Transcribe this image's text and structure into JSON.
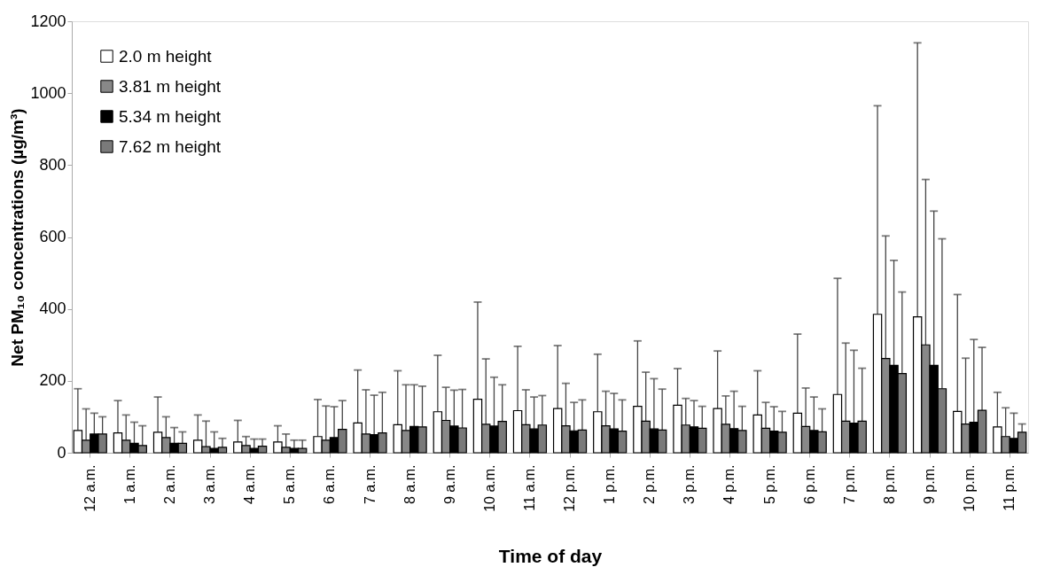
{
  "chart_data": {
    "type": "bar",
    "xlabel": "Time of day",
    "ylabel": "Net PM₁₀ concentrations (µg/m³)",
    "categories": [
      "12 a.m.",
      "1 a.m.",
      "2 a.m.",
      "3 a.m.",
      "4 a.m.",
      "5 a.m.",
      "6 a.m.",
      "7 a.m.",
      "8 a.m.",
      "9 a.m.",
      "10 a.m.",
      "11 a.m.",
      "12 p.m.",
      "1 p.m.",
      "2 p.m.",
      "3 p.m.",
      "4 p.m.",
      "5 p.m.",
      "6 p.m.",
      "7 p.m.",
      "8 p.m.",
      "9 p.m.",
      "10 p.m.",
      "11 p.m."
    ],
    "series": [
      {
        "name": "2.0 m height",
        "color": "#ffffff",
        "values": [
          62,
          55,
          57,
          35,
          30,
          30,
          45,
          83,
          78,
          114,
          149,
          117,
          123,
          114,
          129,
          132,
          123,
          105,
          110,
          162,
          385,
          378,
          115,
          72
        ],
        "errors": [
          [
            62,
            178
          ],
          [
            55,
            145
          ],
          [
            57,
            155
          ],
          [
            35,
            105
          ],
          [
            30,
            90
          ],
          [
            30,
            75
          ],
          [
            45,
            148
          ],
          [
            83,
            230
          ],
          [
            78,
            228
          ],
          [
            114,
            271
          ],
          [
            149,
            419
          ],
          [
            117,
            296
          ],
          [
            123,
            298
          ],
          [
            114,
            274
          ],
          [
            129,
            311
          ],
          [
            132,
            234
          ],
          [
            123,
            283
          ],
          [
            105,
            228
          ],
          [
            110,
            330
          ],
          [
            162,
            485
          ],
          [
            385,
            965
          ],
          [
            378,
            1140
          ],
          [
            115,
            440
          ],
          [
            72,
            168
          ]
        ]
      },
      {
        "name": "3.81 m height",
        "color": "#888888",
        "values": [
          35,
          35,
          42,
          17,
          20,
          15,
          35,
          52,
          62,
          90,
          79,
          78,
          75,
          75,
          88,
          77,
          79,
          68,
          73,
          88,
          262,
          300,
          80,
          45
        ],
        "errors": [
          [
            35,
            122
          ],
          [
            35,
            105
          ],
          [
            42,
            100
          ],
          [
            17,
            88
          ],
          [
            20,
            45
          ],
          [
            15,
            52
          ],
          [
            35,
            130
          ],
          [
            52,
            175
          ],
          [
            62,
            189
          ],
          [
            90,
            182
          ],
          [
            79,
            261
          ],
          [
            78,
            175
          ],
          [
            75,
            193
          ],
          [
            75,
            171
          ],
          [
            88,
            224
          ],
          [
            77,
            151
          ],
          [
            79,
            158
          ],
          [
            68,
            140
          ],
          [
            73,
            180
          ],
          [
            88,
            305
          ],
          [
            262,
            603
          ],
          [
            300,
            760
          ],
          [
            80,
            263
          ],
          [
            45,
            125
          ]
        ]
      },
      {
        "name": "5.34 m height",
        "color": "#000000",
        "values": [
          52,
          26,
          26,
          12,
          12,
          12,
          42,
          50,
          73,
          74,
          74,
          66,
          61,
          66,
          66,
          72,
          67,
          60,
          62,
          82,
          243,
          243,
          85,
          40
        ],
        "errors": [
          [
            52,
            110
          ],
          [
            26,
            85
          ],
          [
            26,
            70
          ],
          [
            12,
            58
          ],
          [
            12,
            38
          ],
          [
            12,
            35
          ],
          [
            42,
            128
          ],
          [
            50,
            160
          ],
          [
            73,
            189
          ],
          [
            74,
            174
          ],
          [
            74,
            210
          ],
          [
            66,
            155
          ],
          [
            61,
            140
          ],
          [
            66,
            165
          ],
          [
            66,
            206
          ],
          [
            72,
            145
          ],
          [
            67,
            171
          ],
          [
            60,
            128
          ],
          [
            62,
            155
          ],
          [
            82,
            285
          ],
          [
            243,
            535
          ],
          [
            243,
            672
          ],
          [
            85,
            315
          ],
          [
            40,
            110
          ]
        ]
      },
      {
        "name": "7.62 m height",
        "color": "#7a7a7a",
        "values": [
          52,
          20,
          26,
          15,
          18,
          12,
          65,
          55,
          72,
          69,
          87,
          77,
          63,
          60,
          63,
          68,
          62,
          57,
          58,
          88,
          220,
          178,
          118,
          57
        ],
        "errors": [
          [
            52,
            100
          ],
          [
            20,
            75
          ],
          [
            26,
            58
          ],
          [
            15,
            40
          ],
          [
            18,
            38
          ],
          [
            12,
            35
          ],
          [
            65,
            145
          ],
          [
            55,
            168
          ],
          [
            72,
            185
          ],
          [
            69,
            176
          ],
          [
            87,
            189
          ],
          [
            77,
            159
          ],
          [
            63,
            147
          ],
          [
            60,
            147
          ],
          [
            63,
            177
          ],
          [
            68,
            129
          ],
          [
            62,
            129
          ],
          [
            57,
            115
          ],
          [
            58,
            122
          ],
          [
            88,
            235
          ],
          [
            220,
            447
          ],
          [
            178,
            595
          ],
          [
            118,
            293
          ],
          [
            57,
            80
          ]
        ]
      }
    ],
    "ylim": [
      0,
      1200
    ],
    "yticks": [
      0,
      200,
      400,
      600,
      800,
      1000,
      1200
    ],
    "legend": "top left",
    "grid": false
  }
}
